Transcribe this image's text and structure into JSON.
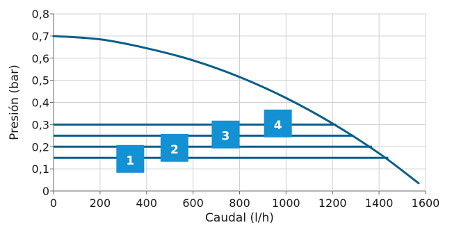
{
  "chart_data": {
    "type": "line",
    "xlabel": "Caudal (l/h)",
    "ylabel": "Presión (bar)",
    "xlim": [
      0,
      1600
    ],
    "ylim": [
      0,
      0.8
    ],
    "x_ticks": [
      0,
      200,
      400,
      600,
      800,
      1000,
      1200,
      1400,
      1600
    ],
    "x_tick_labels": [
      "0",
      "200",
      "400",
      "600",
      "800",
      "1000",
      "1200",
      "1400",
      "1600"
    ],
    "y_ticks": [
      0,
      0.1,
      0.2,
      0.3,
      0.4,
      0.5,
      0.6,
      0.7,
      0.8
    ],
    "y_tick_labels": [
      "0",
      "0,1",
      "0,2",
      "0,3",
      "0,4",
      "0,5",
      "0,6",
      "0,7",
      "0,8"
    ],
    "grid": true,
    "colors": {
      "series": "#0a5f8a",
      "box": "#1391d3",
      "grid": "#d0d0d0",
      "axis": "#6a6a6a"
    },
    "series": [
      {
        "name": "pump-curve",
        "x": [
          0,
          200,
          400,
          600,
          800,
          1000,
          1200,
          1400,
          1570
        ],
        "y": [
          0.7,
          0.685,
          0.645,
          0.59,
          0.515,
          0.42,
          0.305,
          0.17,
          0.035
        ]
      }
    ],
    "operating_levels": [
      {
        "label": "1",
        "y": 0.15,
        "x_end": 1440,
        "box_x": 330,
        "box_y": 0.145
      },
      {
        "label": "2",
        "y": 0.2,
        "x_end": 1370,
        "box_x": 520,
        "box_y": 0.195
      },
      {
        "label": "3",
        "y": 0.25,
        "x_end": 1290,
        "box_x": 740,
        "box_y": 0.255
      },
      {
        "label": "4",
        "y": 0.3,
        "x_end": 1215,
        "box_x": 965,
        "box_y": 0.305
      }
    ]
  }
}
